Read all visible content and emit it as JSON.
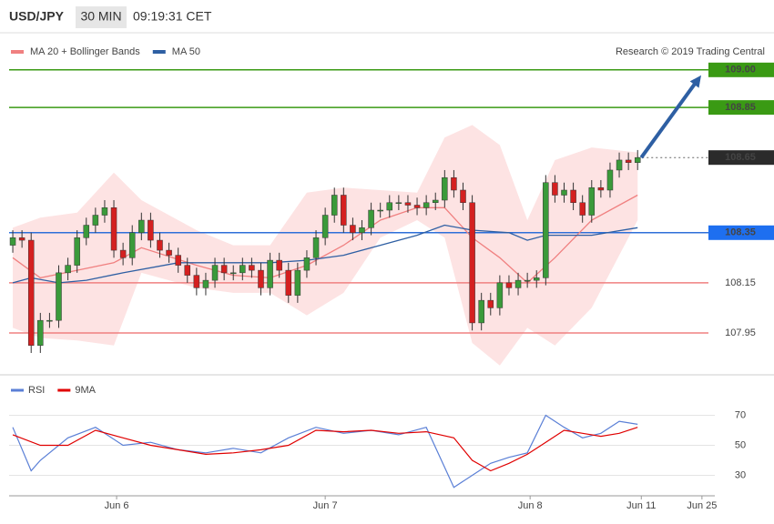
{
  "header": {
    "symbol": "USD/JPY",
    "timeframe": "30 MIN",
    "time": "09:19:31 CET"
  },
  "credit": "Research © 2019 Trading Central",
  "chart_data": [
    {
      "type": "candlestick",
      "xlim": [
        -0.4,
        76.4
      ],
      "ylim": [
        107.79,
        109.17
      ],
      "up_color": "#3a9a3a",
      "down_color": "#d42020",
      "open": [
        108.3,
        108.33,
        108.32,
        107.9,
        108.0,
        108.0,
        108.19,
        108.22,
        108.33,
        108.38,
        108.42,
        108.45,
        108.28,
        108.25,
        108.35,
        108.4,
        108.32,
        108.28,
        108.26,
        108.22,
        108.18,
        108.13,
        108.16,
        108.22,
        108.19,
        108.19,
        108.22,
        108.2,
        108.13,
        108.24,
        108.2,
        108.1,
        108.2,
        108.25,
        108.33,
        108.42,
        108.5,
        108.38,
        108.35,
        108.37,
        108.44,
        108.44,
        108.47,
        108.47,
        108.46,
        108.45,
        108.47,
        108.48,
        108.57,
        108.52,
        108.47,
        107.99,
        108.08,
        108.05,
        108.15,
        108.13,
        108.16,
        108.16,
        108.17,
        108.55,
        108.5,
        108.52,
        108.47,
        108.42,
        108.53,
        108.52,
        108.6,
        108.64,
        108.63
      ],
      "high": [
        108.36,
        108.36,
        108.35,
        108.03,
        108.03,
        108.22,
        108.25,
        108.36,
        108.41,
        108.45,
        108.48,
        108.48,
        108.31,
        108.38,
        108.43,
        108.43,
        108.35,
        108.31,
        108.29,
        108.25,
        108.21,
        108.19,
        108.25,
        108.25,
        108.22,
        108.25,
        108.25,
        108.23,
        108.27,
        108.27,
        108.23,
        108.23,
        108.28,
        108.36,
        108.45,
        108.53,
        108.53,
        108.41,
        108.4,
        108.47,
        108.47,
        108.5,
        108.5,
        108.5,
        108.49,
        108.5,
        108.51,
        108.6,
        108.6,
        108.55,
        108.5,
        108.11,
        108.11,
        108.18,
        108.18,
        108.19,
        108.19,
        108.2,
        108.58,
        108.58,
        108.55,
        108.55,
        108.5,
        108.56,
        108.56,
        108.63,
        108.67,
        108.67,
        108.68
      ],
      "low": [
        108.27,
        108.29,
        107.87,
        107.87,
        107.97,
        107.97,
        108.16,
        108.19,
        108.3,
        108.35,
        108.39,
        108.25,
        108.22,
        108.22,
        108.32,
        108.29,
        108.25,
        108.23,
        108.19,
        108.15,
        108.1,
        108.1,
        108.13,
        108.16,
        108.16,
        108.16,
        108.17,
        108.1,
        108.1,
        108.17,
        108.07,
        108.07,
        108.17,
        108.22,
        108.3,
        108.39,
        108.35,
        108.32,
        108.32,
        108.34,
        108.41,
        108.41,
        108.44,
        108.43,
        108.42,
        108.42,
        108.44,
        108.45,
        108.49,
        108.44,
        107.96,
        107.96,
        108.02,
        108.02,
        108.1,
        108.1,
        108.13,
        108.13,
        108.14,
        108.47,
        108.47,
        108.44,
        108.39,
        108.39,
        108.49,
        108.49,
        108.57,
        108.6,
        108.6
      ],
      "close": [
        108.33,
        108.32,
        107.9,
        108.0,
        108.0,
        108.19,
        108.22,
        108.33,
        108.38,
        108.42,
        108.45,
        108.28,
        108.25,
        108.35,
        108.4,
        108.32,
        108.28,
        108.26,
        108.22,
        108.18,
        108.13,
        108.16,
        108.22,
        108.19,
        108.19,
        108.22,
        108.2,
        108.13,
        108.24,
        108.2,
        108.1,
        108.2,
        108.25,
        108.33,
        108.42,
        108.5,
        108.38,
        108.35,
        108.37,
        108.44,
        108.44,
        108.47,
        108.47,
        108.46,
        108.45,
        108.47,
        108.48,
        108.57,
        108.52,
        108.47,
        107.99,
        108.08,
        108.05,
        108.15,
        108.13,
        108.16,
        108.16,
        108.17,
        108.55,
        108.5,
        108.52,
        108.47,
        108.42,
        108.53,
        108.52,
        108.6,
        108.64,
        108.63,
        108.65
      ],
      "series": [
        {
          "name": "MA 20 + Bollinger Bands",
          "color": "#f08080",
          "band_color": "#fde3e3",
          "x": [
            0,
            3,
            7,
            11,
            14,
            20,
            24,
            28,
            32,
            36,
            40,
            44,
            47,
            50,
            53,
            56,
            59,
            63,
            68
          ],
          "values": [
            108.25,
            108.17,
            108.2,
            108.23,
            108.29,
            108.22,
            108.18,
            108.17,
            108.22,
            108.3,
            108.4,
            108.45,
            108.45,
            108.33,
            108.25,
            108.15,
            108.25,
            108.4,
            108.5
          ],
          "upper": [
            108.37,
            108.41,
            108.43,
            108.59,
            108.48,
            108.36,
            108.3,
            108.3,
            108.51,
            108.53,
            108.52,
            108.51,
            108.73,
            108.78,
            108.7,
            108.4,
            108.64,
            108.69,
            108.67
          ],
          "lower": [
            107.97,
            107.93,
            107.92,
            107.9,
            108.19,
            108.13,
            108.11,
            108.11,
            108.02,
            108.11,
            108.33,
            108.4,
            108.33,
            107.91,
            107.82,
            107.97,
            107.9,
            108.05,
            108.4
          ]
        },
        {
          "name": "MA 50",
          "color": "#2e5fa3",
          "x": [
            0,
            2,
            5,
            8,
            12,
            18,
            24,
            28,
            32,
            36,
            40,
            44,
            47,
            50,
            54,
            56,
            58,
            63,
            68
          ],
          "values": [
            108.15,
            108.17,
            108.15,
            108.16,
            108.19,
            108.23,
            108.23,
            108.23,
            108.24,
            108.26,
            108.3,
            108.34,
            108.38,
            108.36,
            108.35,
            108.32,
            108.34,
            108.34,
            108.37
          ]
        }
      ],
      "levels": [
        {
          "value": 109,
          "label": "109.00",
          "color": "#3a9a14",
          "label_bg": "#3a9a14",
          "style": "solid"
        },
        {
          "value": 108.85,
          "label": "108.85",
          "color": "#3a9a14",
          "label_bg": "#3a9a14",
          "style": "solid"
        },
        {
          "value": 108.65,
          "label": "108.65",
          "color": "#666666",
          "label_bg": "#2b2b2b",
          "style": "dotted"
        },
        {
          "value": 108.35,
          "label": "108.35",
          "color": "#2e6fd8",
          "label_bg": "#1e6ff0",
          "style": "solid"
        },
        {
          "value": 108.15,
          "label": "108.15",
          "color": "#f08080",
          "style": "solid"
        },
        {
          "value": 107.95,
          "label": "107.95",
          "color": "#f08080",
          "style": "solid"
        }
      ],
      "arrow_color": "#2e5fa3"
    },
    {
      "type": "line",
      "xlim": [
        -0.4,
        76.4
      ],
      "ylim": [
        20,
        80
      ],
      "yticks": [
        30,
        50,
        70
      ],
      "xticks": [
        {
          "value": 11.3,
          "label": "Jun 6"
        },
        {
          "value": 34.0,
          "label": "Jun 7"
        },
        {
          "value": 56.3,
          "label": "Jun 8"
        },
        {
          "value": 68.4,
          "label": "Jun 11"
        },
        {
          "value": 75.0,
          "label": "Jun 25"
        }
      ],
      "series": [
        {
          "name": "RSI",
          "color": "#5a7fd6",
          "x": [
            0,
            2,
            3,
            6,
            9,
            12,
            15,
            18,
            21,
            24,
            27,
            30,
            33,
            36,
            39,
            42,
            45,
            48,
            50,
            52,
            54,
            56,
            58,
            60,
            62,
            64,
            66,
            68
          ],
          "values": [
            62,
            33,
            40,
            55,
            62,
            50,
            52,
            47,
            45,
            48,
            45,
            55,
            62,
            58,
            60,
            57,
            62,
            22,
            30,
            38,
            42,
            45,
            70,
            62,
            55,
            58,
            66,
            64
          ]
        },
        {
          "name": "9MA",
          "color": "#e00000",
          "x": [
            0,
            3,
            6,
            9,
            12,
            15,
            18,
            21,
            24,
            27,
            30,
            33,
            36,
            39,
            42,
            45,
            48,
            50,
            52,
            54,
            56,
            58,
            60,
            62,
            64,
            66,
            68
          ],
          "values": [
            57,
            50,
            50,
            60,
            55,
            50,
            47,
            44,
            45,
            47,
            50,
            60,
            59,
            60,
            58,
            59,
            55,
            40,
            33,
            38,
            44,
            52,
            60,
            58,
            56,
            58,
            62
          ]
        }
      ]
    }
  ]
}
